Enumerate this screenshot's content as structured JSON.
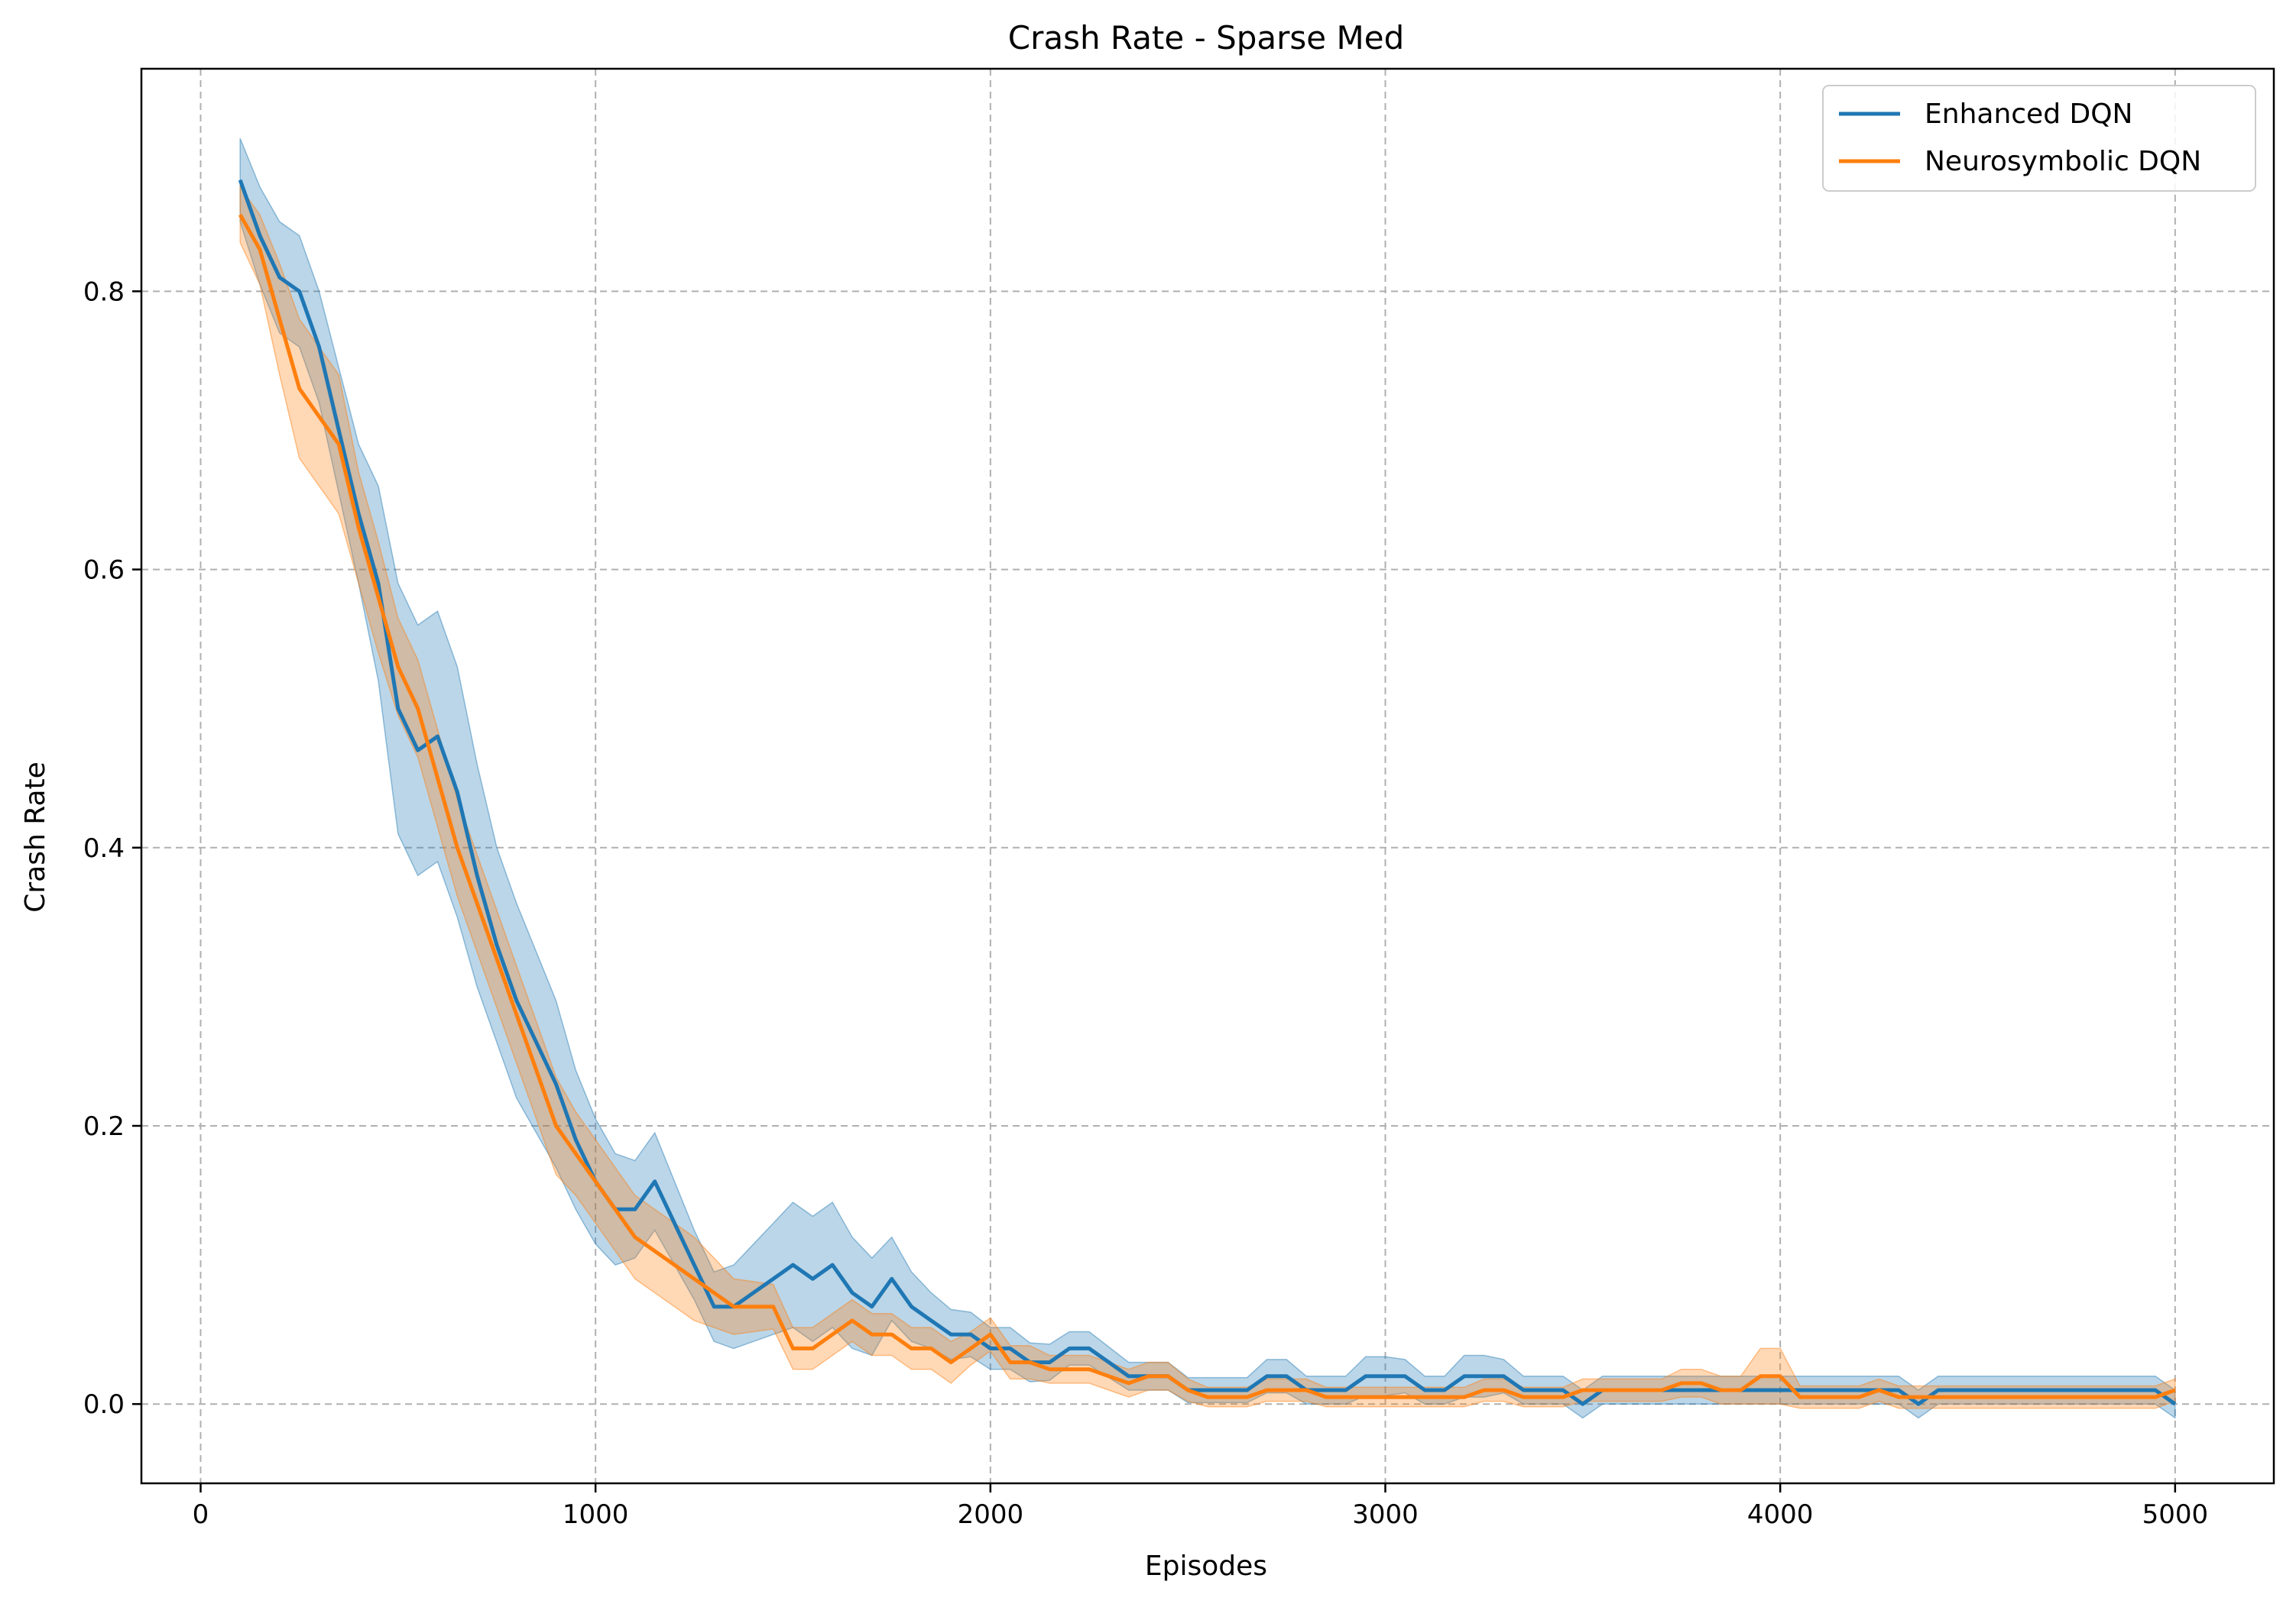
{
  "chart_data": {
    "type": "line",
    "title": "Crash Rate - Sparse Med",
    "xlabel": "Episodes",
    "ylabel": "Crash Rate",
    "xlim": [
      -150,
      5250
    ],
    "ylim": [
      -0.057,
      0.96
    ],
    "xticks": [
      0,
      1000,
      2000,
      3000,
      4000,
      5000
    ],
    "xtick_labels": [
      "0",
      "1000",
      "2000",
      "3000",
      "4000",
      "5000"
    ],
    "yticks": [
      0.0,
      0.2,
      0.4,
      0.6,
      0.8
    ],
    "ytick_labels": [
      "0.0",
      "0.2",
      "0.4",
      "0.6",
      "0.8"
    ],
    "grid": true,
    "legend_position": "top-right",
    "series": [
      {
        "name": "Enhanced DQN",
        "color": "#1f77b4",
        "x": [
          100,
          150,
          200,
          250,
          300,
          350,
          400,
          450,
          500,
          550,
          600,
          650,
          700,
          750,
          800,
          850,
          900,
          950,
          1000,
          1050,
          1100,
          1150,
          1200,
          1250,
          1300,
          1350,
          1400,
          1450,
          1500,
          1550,
          1600,
          1650,
          1700,
          1750,
          1800,
          1850,
          1900,
          1950,
          2000,
          2050,
          2100,
          2150,
          2200,
          2250,
          2300,
          2350,
          2400,
          2450,
          2500,
          2550,
          2600,
          2650,
          2700,
          2750,
          2800,
          2850,
          2900,
          2950,
          3000,
          3050,
          3100,
          3150,
          3200,
          3250,
          3300,
          3350,
          3400,
          3450,
          3500,
          3550,
          3600,
          3650,
          3700,
          3750,
          3800,
          3850,
          3900,
          3950,
          4000,
          4050,
          4100,
          4150,
          4200,
          4250,
          4300,
          4350,
          4400,
          4450,
          4500,
          4550,
          4600,
          4650,
          4700,
          4750,
          4800,
          4850,
          4900,
          4950,
          5000
        ],
        "y": [
          0.88,
          0.84,
          0.81,
          0.8,
          0.76,
          0.7,
          0.64,
          0.59,
          0.5,
          0.47,
          0.48,
          0.44,
          0.38,
          0.33,
          0.29,
          0.26,
          0.23,
          0.19,
          0.16,
          0.14,
          0.14,
          0.16,
          0.13,
          0.1,
          0.07,
          0.07,
          0.08,
          0.09,
          0.1,
          0.09,
          0.1,
          0.08,
          0.07,
          0.09,
          0.07,
          0.06,
          0.05,
          0.05,
          0.04,
          0.04,
          0.03,
          0.03,
          0.04,
          0.04,
          0.03,
          0.02,
          0.02,
          0.02,
          0.01,
          0.01,
          0.01,
          0.01,
          0.02,
          0.02,
          0.01,
          0.01,
          0.01,
          0.02,
          0.02,
          0.02,
          0.01,
          0.01,
          0.02,
          0.02,
          0.02,
          0.01,
          0.01,
          0.01,
          0.0,
          0.01,
          0.01,
          0.01,
          0.01,
          0.01,
          0.01,
          0.01,
          0.01,
          0.01,
          0.01,
          0.01,
          0.01,
          0.01,
          0.01,
          0.01,
          0.01,
          0.0,
          0.01,
          0.01,
          0.01,
          0.01,
          0.01,
          0.01,
          0.01,
          0.01,
          0.01,
          0.01,
          0.01,
          0.01,
          0.0
        ],
        "band_halfwidth": [
          0.03,
          0.035,
          0.04,
          0.04,
          0.04,
          0.045,
          0.05,
          0.07,
          0.09,
          0.09,
          0.09,
          0.09,
          0.08,
          0.07,
          0.07,
          0.065,
          0.06,
          0.05,
          0.045,
          0.04,
          0.035,
          0.035,
          0.03,
          0.025,
          0.025,
          0.03,
          0.035,
          0.04,
          0.045,
          0.045,
          0.045,
          0.04,
          0.035,
          0.03,
          0.025,
          0.02,
          0.018,
          0.016,
          0.015,
          0.015,
          0.014,
          0.013,
          0.012,
          0.012,
          0.011,
          0.01,
          0.01,
          0.01,
          0.009,
          0.009,
          0.009,
          0.009,
          0.012,
          0.012,
          0.01,
          0.01,
          0.01,
          0.014,
          0.014,
          0.012,
          0.01,
          0.01,
          0.015,
          0.015,
          0.012,
          0.01,
          0.01,
          0.01,
          0.01,
          0.01,
          0.01,
          0.01,
          0.01,
          0.01,
          0.01,
          0.01,
          0.01,
          0.01,
          0.01,
          0.01,
          0.01,
          0.01,
          0.01,
          0.01,
          0.01,
          0.01,
          0.01,
          0.01,
          0.01,
          0.01,
          0.01,
          0.01,
          0.01,
          0.01,
          0.01,
          0.01,
          0.01,
          0.01,
          0.01
        ]
      },
      {
        "name": "Neurosymbolic DQN",
        "color": "#ff7f0e",
        "x": [
          100,
          150,
          200,
          250,
          300,
          350,
          400,
          450,
          500,
          550,
          600,
          650,
          700,
          750,
          800,
          850,
          900,
          950,
          1000,
          1050,
          1100,
          1150,
          1200,
          1250,
          1300,
          1350,
          1400,
          1450,
          1500,
          1550,
          1600,
          1650,
          1700,
          1750,
          1800,
          1850,
          1900,
          1950,
          2000,
          2050,
          2100,
          2150,
          2200,
          2250,
          2300,
          2350,
          2400,
          2450,
          2500,
          2550,
          2600,
          2650,
          2700,
          2750,
          2800,
          2850,
          2900,
          2950,
          3000,
          3050,
          3100,
          3150,
          3200,
          3250,
          3300,
          3350,
          3400,
          3450,
          3500,
          3550,
          3600,
          3650,
          3700,
          3750,
          3800,
          3850,
          3900,
          3950,
          4000,
          4050,
          4100,
          4150,
          4200,
          4250,
          4300,
          4350,
          4400,
          4450,
          4500,
          4550,
          4600,
          4650,
          4700,
          4750,
          4800,
          4850,
          4900,
          4950,
          5000
        ],
        "y": [
          0.855,
          0.83,
          0.78,
          0.73,
          0.71,
          0.69,
          0.63,
          0.58,
          0.53,
          0.5,
          0.45,
          0.4,
          0.36,
          0.32,
          0.28,
          0.24,
          0.2,
          0.18,
          0.16,
          0.14,
          0.12,
          0.11,
          0.1,
          0.09,
          0.08,
          0.07,
          0.07,
          0.07,
          0.04,
          0.04,
          0.05,
          0.06,
          0.05,
          0.05,
          0.04,
          0.04,
          0.03,
          0.04,
          0.05,
          0.03,
          0.03,
          0.025,
          0.025,
          0.025,
          0.02,
          0.015,
          0.02,
          0.02,
          0.01,
          0.005,
          0.005,
          0.005,
          0.01,
          0.01,
          0.01,
          0.005,
          0.005,
          0.005,
          0.005,
          0.005,
          0.005,
          0.005,
          0.005,
          0.01,
          0.01,
          0.005,
          0.005,
          0.005,
          0.01,
          0.01,
          0.01,
          0.01,
          0.01,
          0.015,
          0.015,
          0.01,
          0.01,
          0.02,
          0.02,
          0.005,
          0.005,
          0.005,
          0.005,
          0.01,
          0.005,
          0.005,
          0.005,
          0.005,
          0.005,
          0.005,
          0.005,
          0.005,
          0.005,
          0.005,
          0.005,
          0.005,
          0.005,
          0.005,
          0.01
        ],
        "band_halfwidth": [
          0.02,
          0.025,
          0.04,
          0.05,
          0.05,
          0.05,
          0.04,
          0.04,
          0.035,
          0.035,
          0.035,
          0.035,
          0.035,
          0.035,
          0.035,
          0.035,
          0.035,
          0.03,
          0.03,
          0.03,
          0.03,
          0.03,
          0.03,
          0.03,
          0.025,
          0.02,
          0.018,
          0.016,
          0.015,
          0.015,
          0.015,
          0.015,
          0.015,
          0.015,
          0.015,
          0.015,
          0.015,
          0.012,
          0.012,
          0.012,
          0.012,
          0.01,
          0.01,
          0.01,
          0.01,
          0.01,
          0.01,
          0.01,
          0.008,
          0.007,
          0.007,
          0.007,
          0.008,
          0.008,
          0.008,
          0.007,
          0.007,
          0.007,
          0.007,
          0.007,
          0.007,
          0.007,
          0.007,
          0.008,
          0.008,
          0.007,
          0.007,
          0.007,
          0.008,
          0.008,
          0.008,
          0.008,
          0.008,
          0.01,
          0.01,
          0.01,
          0.01,
          0.02,
          0.02,
          0.008,
          0.008,
          0.008,
          0.008,
          0.008,
          0.008,
          0.008,
          0.008,
          0.008,
          0.008,
          0.008,
          0.008,
          0.008,
          0.008,
          0.008,
          0.008,
          0.008,
          0.008,
          0.008,
          0.008
        ]
      }
    ]
  }
}
